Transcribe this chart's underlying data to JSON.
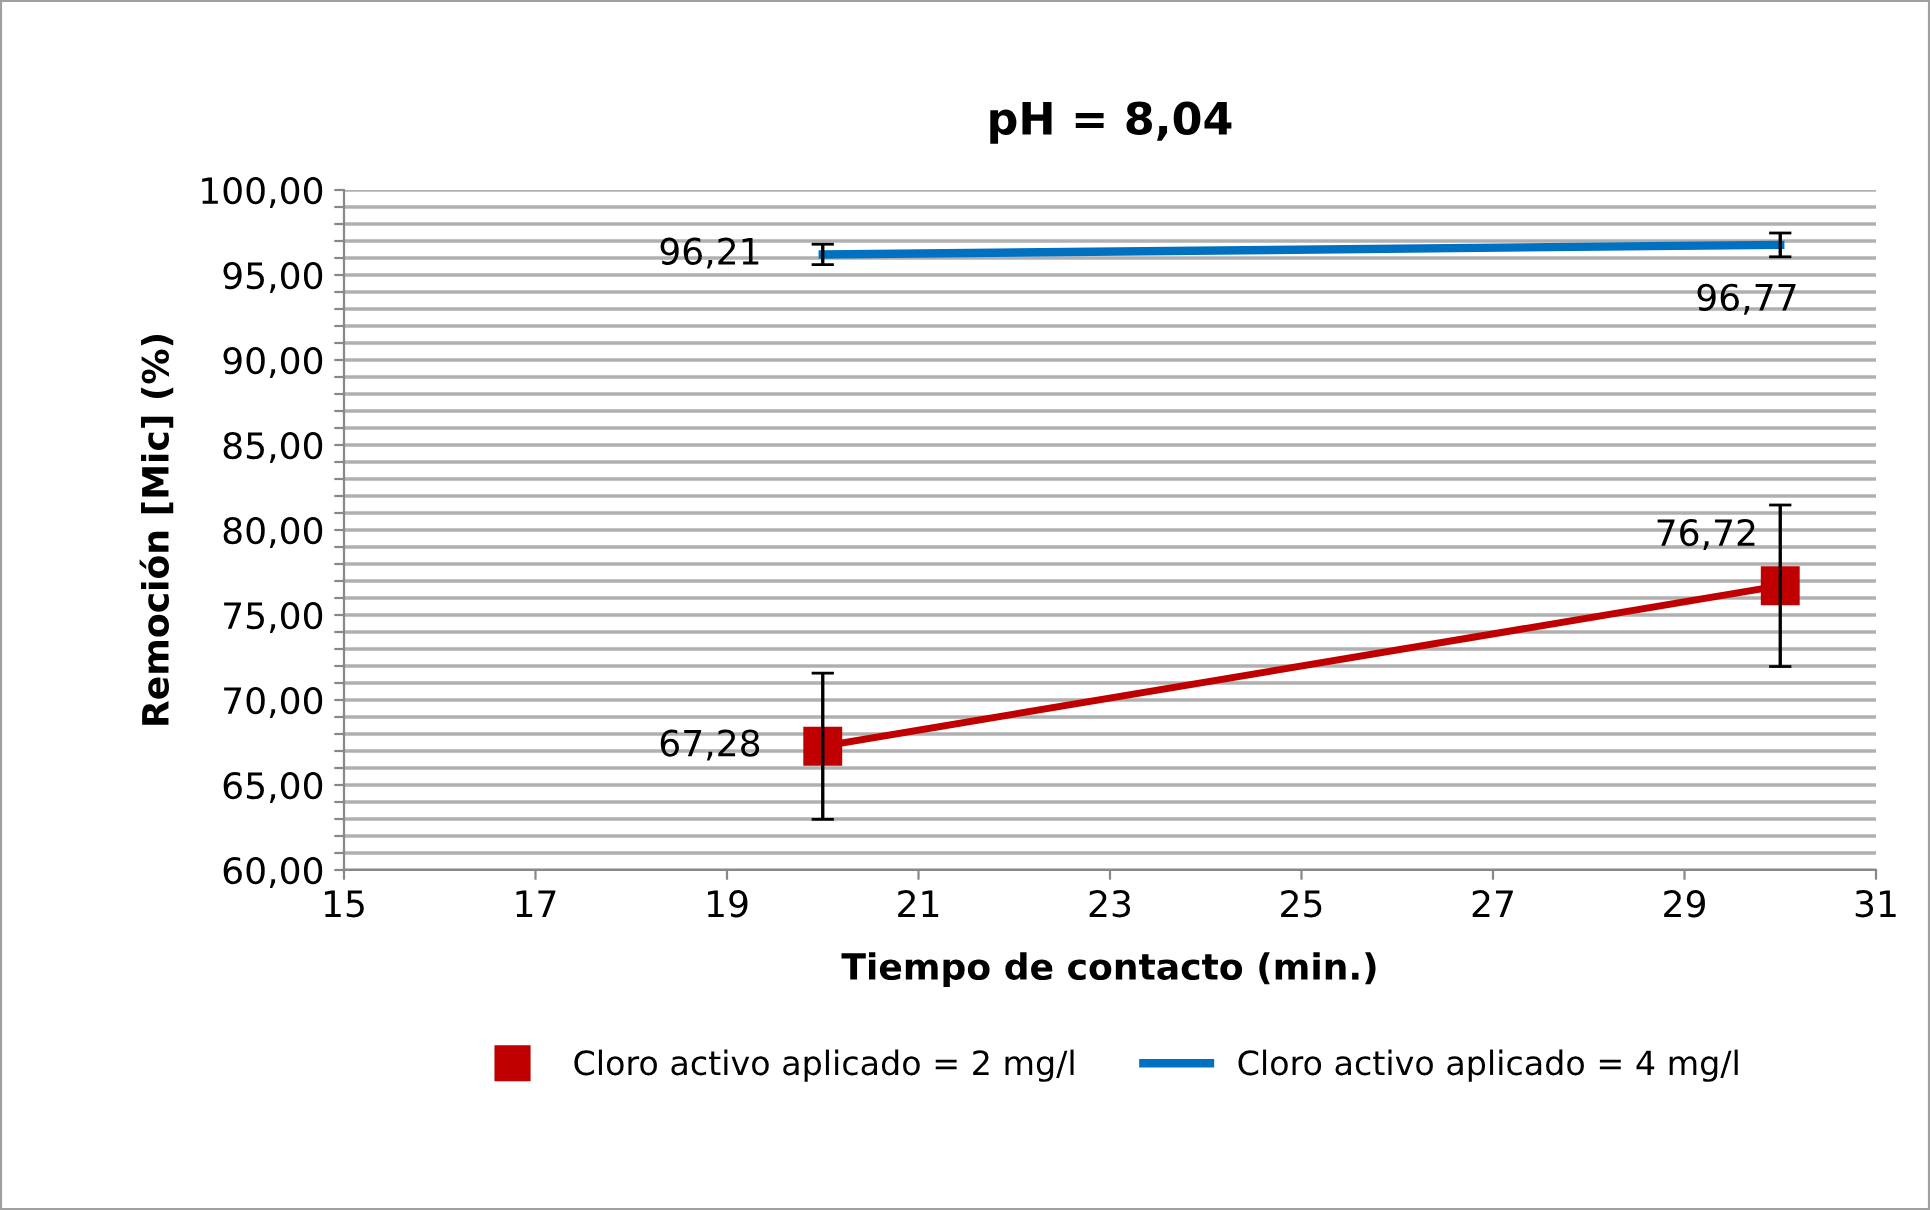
{
  "chart_data": {
    "type": "line",
    "title": "pH = 8,04",
    "xlabel": "Tiempo de contacto (min.)",
    "ylabel": "Remoción [Mic] (%)",
    "series": [
      {
        "name": "Cloro activo aplicado = 2 mg/l",
        "color": "#c00000",
        "values": [
          67.28,
          76.72
        ],
        "errors": [
          4.3,
          4.75
        ],
        "value_labels": [
          "67,28",
          "76,72"
        ],
        "marker": "square"
      },
      {
        "name": "Cloro activo aplicado = 4 mg/l",
        "color": "#0070c0",
        "values": [
          96.21,
          96.77
        ],
        "errors": [
          0.6,
          0.7
        ],
        "value_labels": [
          "96,21",
          "96,77"
        ],
        "marker": "none"
      }
    ],
    "x": [
      20,
      30
    ],
    "xlim": [
      15,
      31
    ],
    "xticks": [
      15,
      17,
      19,
      21,
      23,
      25,
      27,
      29,
      31
    ],
    "ylim": [
      60,
      100
    ],
    "yticks": [
      {
        "value": 60,
        "label": "60,00"
      },
      {
        "value": 61,
        "label": null
      },
      {
        "value": 62,
        "label": null
      },
      {
        "value": 63,
        "label": null
      },
      {
        "value": 64,
        "label": null
      },
      {
        "value": 65,
        "label": "65,00"
      },
      {
        "value": 66,
        "label": null
      },
      {
        "value": 67,
        "label": null
      },
      {
        "value": 68,
        "label": null
      },
      {
        "value": 69,
        "label": null
      },
      {
        "value": 70,
        "label": "70,00"
      },
      {
        "value": 71,
        "label": null
      },
      {
        "value": 72,
        "label": null
      },
      {
        "value": 73,
        "label": null
      },
      {
        "value": 74,
        "label": null
      },
      {
        "value": 75,
        "label": "75,00"
      },
      {
        "value": 76,
        "label": null
      },
      {
        "value": 77,
        "label": null
      },
      {
        "value": 78,
        "label": null
      },
      {
        "value": 79,
        "label": null
      },
      {
        "value": 80,
        "label": "80,00"
      },
      {
        "value": 81,
        "label": null
      },
      {
        "value": 82,
        "label": null
      },
      {
        "value": 83,
        "label": null
      },
      {
        "value": 84,
        "label": null
      },
      {
        "value": 85,
        "label": "85,00"
      },
      {
        "value": 86,
        "label": null
      },
      {
        "value": 87,
        "label": null
      },
      {
        "value": 88,
        "label": null
      },
      {
        "value": 89,
        "label": null
      },
      {
        "value": 90,
        "label": "90,00"
      },
      {
        "value": 91,
        "label": null
      },
      {
        "value": 92,
        "label": null
      },
      {
        "value": 93,
        "label": null
      },
      {
        "value": 94,
        "label": null
      },
      {
        "value": 95,
        "label": "95,00"
      },
      {
        "value": 96,
        "label": null
      },
      {
        "value": 97,
        "label": null
      },
      {
        "value": 98,
        "label": null
      },
      {
        "value": 99,
        "label": null
      },
      {
        "value": 100,
        "label": "100,00"
      }
    ],
    "grid": "y",
    "legend": "bottom",
    "line_style": "solid"
  }
}
